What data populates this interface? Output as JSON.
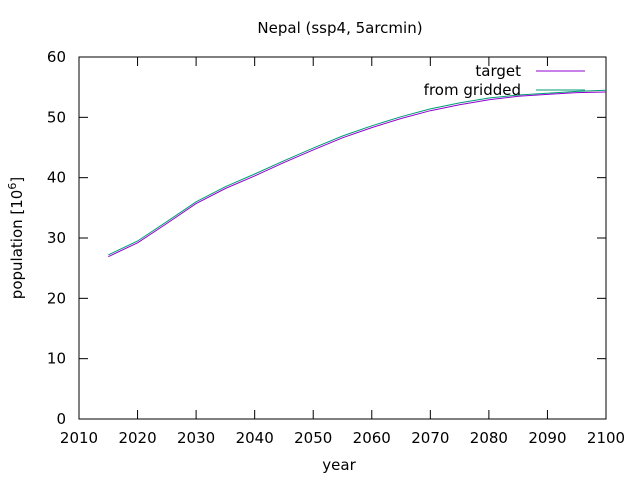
{
  "chart_data": {
    "type": "line",
    "title": "Nepal (ssp4, 5arcmin)",
    "xlabel": "year",
    "ylabel_main": "population [10",
    "ylabel_exp": "6",
    "ylabel_close": "]",
    "xlim": [
      2010,
      2100
    ],
    "ylim": [
      0,
      60
    ],
    "xticks": [
      2010,
      2020,
      2030,
      2040,
      2050,
      2060,
      2070,
      2080,
      2090,
      2100
    ],
    "yticks": [
      0,
      10,
      20,
      30,
      40,
      50,
      60
    ],
    "grid": false,
    "legend_position": "top-right",
    "series": [
      {
        "name": "target",
        "color": "#9400d3",
        "x": [
          2015,
          2020,
          2025,
          2030,
          2035,
          2040,
          2045,
          2050,
          2055,
          2060,
          2065,
          2070,
          2075,
          2080,
          2085,
          2090,
          2095,
          2100
        ],
        "y": [
          26.9,
          29.2,
          32.4,
          35.7,
          38.2,
          40.3,
          42.5,
          44.6,
          46.6,
          48.3,
          49.8,
          51.1,
          52.1,
          52.9,
          53.5,
          53.8,
          54.1,
          54.2
        ]
      },
      {
        "name": "from gridded",
        "color": "#009e73",
        "x": [
          2015,
          2020,
          2025,
          2030,
          2035,
          2040,
          2045,
          2050,
          2055,
          2060,
          2065,
          2070,
          2075,
          2080,
          2085,
          2090,
          2095,
          2100
        ],
        "y": [
          27.2,
          29.5,
          32.7,
          36.0,
          38.5,
          40.6,
          42.8,
          44.9,
          46.9,
          48.6,
          50.1,
          51.4,
          52.4,
          53.2,
          53.7,
          54.0,
          54.3,
          54.5
        ]
      }
    ]
  }
}
